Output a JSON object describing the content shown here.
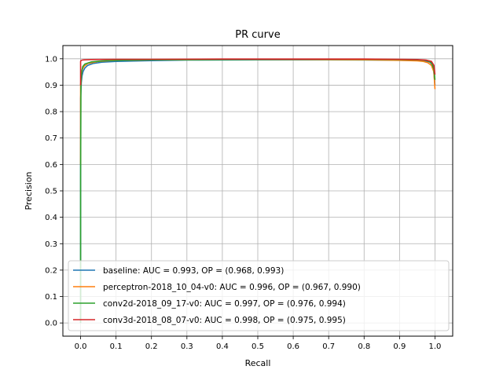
{
  "chart_data": {
    "type": "line",
    "title": "PR curve",
    "xlabel": "Recall",
    "ylabel": "Precision",
    "xlim": [
      -0.05,
      1.05
    ],
    "ylim": [
      -0.05,
      1.05
    ],
    "xticks": [
      0.0,
      0.1,
      0.2,
      0.3,
      0.4,
      0.5,
      0.6,
      0.7,
      0.8,
      0.9,
      1.0
    ],
    "yticks": [
      0.0,
      0.1,
      0.2,
      0.3,
      0.4,
      0.5,
      0.6,
      0.7,
      0.8,
      0.9,
      1.0
    ],
    "xtick_labels": [
      "0.0",
      "0.1",
      "0.2",
      "0.3",
      "0.4",
      "0.5",
      "0.6",
      "0.7",
      "0.8",
      "0.9",
      "1.0"
    ],
    "ytick_labels": [
      "0.0",
      "0.1",
      "0.2",
      "0.3",
      "0.4",
      "0.5",
      "0.6",
      "0.7",
      "0.8",
      "0.9",
      "1.0"
    ],
    "grid": true,
    "legend_position": "lower-left",
    "series": [
      {
        "name": "baseline: AUC = 0.993, OP = (0.968, 0.993)",
        "color": "#1f77b4",
        "x": [
          0.0,
          0.0,
          0.0,
          0.0,
          0.0,
          0.001,
          0.002,
          0.004,
          0.007,
          0.012,
          0.02,
          0.035,
          0.06,
          0.1,
          0.2,
          0.3,
          0.5,
          0.7,
          0.85,
          0.93,
          0.968,
          0.985,
          0.995,
          1.0
        ],
        "y": [
          0.0,
          0.2,
          0.5,
          0.75,
          0.85,
          0.88,
          0.91,
          0.935,
          0.952,
          0.965,
          0.975,
          0.982,
          0.987,
          0.99,
          0.993,
          0.995,
          0.996,
          0.996,
          0.995,
          0.994,
          0.993,
          0.988,
          0.975,
          0.9
        ]
      },
      {
        "name": "perceptron-2018_10_04-v0: AUC = 0.996, OP = (0.967, 0.990)",
        "color": "#ff7f0e",
        "x": [
          0.0,
          0.0,
          0.002,
          0.005,
          0.01,
          0.02,
          0.05,
          0.1,
          0.2,
          0.4,
          0.6,
          0.8,
          0.9,
          0.95,
          0.967,
          0.98,
          0.99,
          0.997,
          1.0
        ],
        "y": [
          0.6,
          0.9,
          0.94,
          0.96,
          0.972,
          0.982,
          0.99,
          0.994,
          0.996,
          0.997,
          0.997,
          0.996,
          0.994,
          0.992,
          0.99,
          0.985,
          0.975,
          0.95,
          0.885
        ]
      },
      {
        "name": "conv2d-2018_09_17-v0: AUC = 0.997, OP = (0.976, 0.994)",
        "color": "#2ca02c",
        "x": [
          0.0,
          0.0,
          0.001,
          0.003,
          0.006,
          0.012,
          0.03,
          0.06,
          0.1,
          0.2,
          0.4,
          0.6,
          0.8,
          0.9,
          0.95,
          0.976,
          0.99,
          0.997,
          1.0
        ],
        "y": [
          0.0,
          0.55,
          0.9,
          0.95,
          0.97,
          0.98,
          0.988,
          0.992,
          0.994,
          0.996,
          0.997,
          0.998,
          0.998,
          0.997,
          0.996,
          0.994,
          0.985,
          0.96,
          0.92
        ]
      },
      {
        "name": "conv3d-2018_08_07-v0: AUC = 0.998, OP = (0.975, 0.995)",
        "color": "#d62728",
        "x": [
          0.0,
          0.0,
          0.0,
          0.001,
          0.004,
          0.01,
          0.03,
          0.1,
          0.2,
          0.4,
          0.6,
          0.8,
          0.9,
          0.95,
          0.975,
          0.99,
          0.997,
          1.0
        ],
        "y": [
          0.9,
          0.97,
          0.99,
          0.993,
          0.995,
          0.996,
          0.997,
          0.998,
          0.998,
          0.999,
          0.999,
          0.999,
          0.998,
          0.997,
          0.995,
          0.99,
          0.975,
          0.94
        ]
      }
    ]
  }
}
